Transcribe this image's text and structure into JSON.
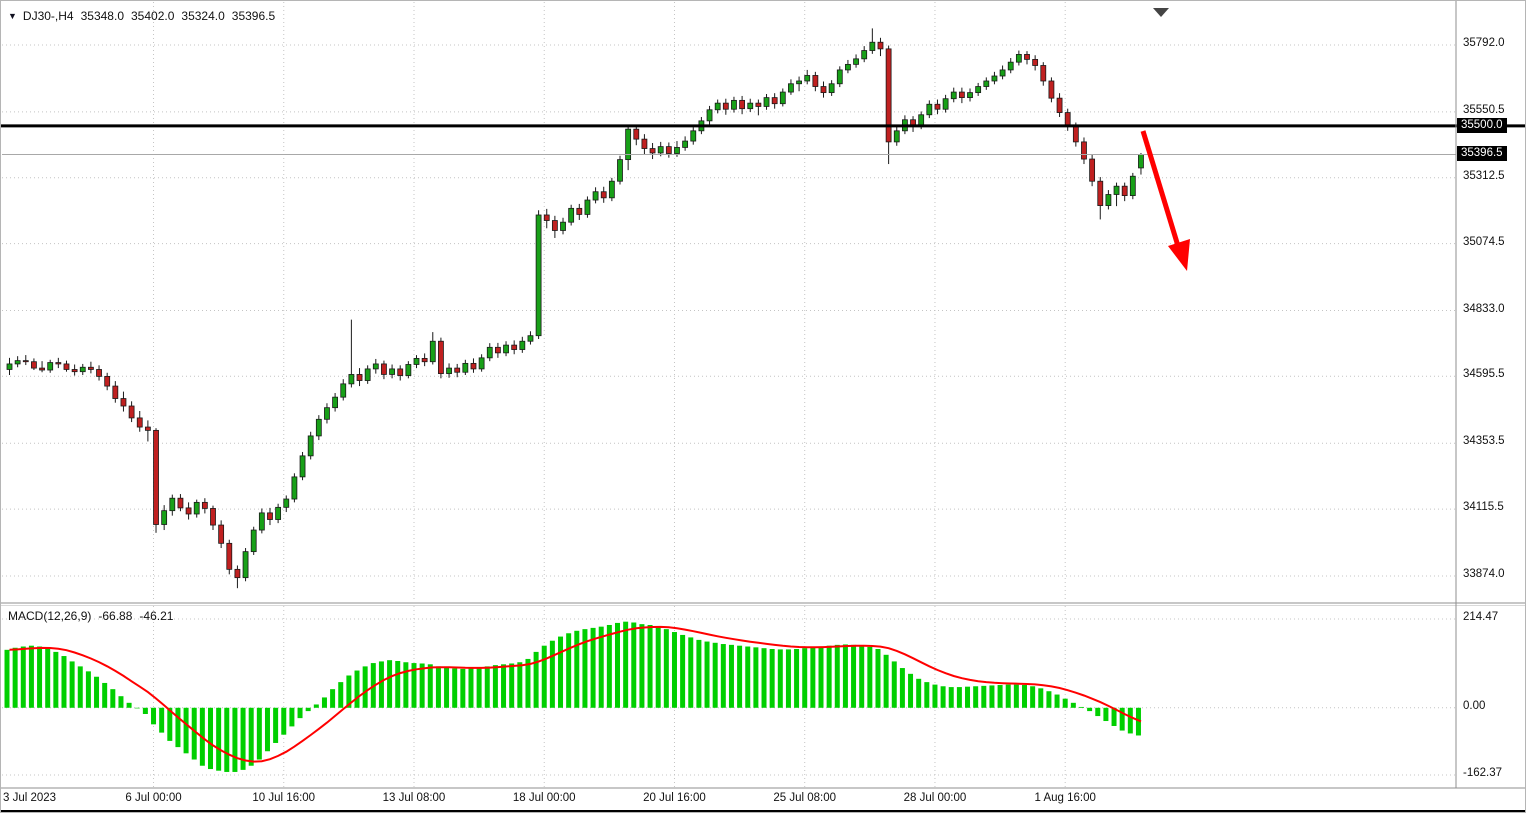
{
  "header": {
    "symbol": "DJ30-,H4",
    "open": "35348.0",
    "high": "35402.0",
    "low": "35324.0",
    "close": "35396.5"
  },
  "icons": {
    "symbol_marker": "▼",
    "scroll_marker": "▼"
  },
  "colors": {
    "bull": "#18a018",
    "bear": "#c02020",
    "wick": "#1a1a1a",
    "macd_bar": "#00cf00",
    "signal": "#ff0000",
    "arrow": "#ff0000",
    "hline": "#000000",
    "grid": "#c4c4c4",
    "bid_line": "#a8a8a8",
    "axis_text": "#111111",
    "label_box_bg": "#000000",
    "label_box_text": "#ffffff",
    "separator": "#8f8f8f"
  },
  "price_axis": {
    "ticks": [
      "35792.0",
      "35550.5",
      "35312.5",
      "35074.5",
      "34833.0",
      "34595.5",
      "34353.5",
      "34115.5",
      "33874.0"
    ],
    "line_label": "35500.0",
    "bid_label": "35396.5"
  },
  "time_axis": {
    "ticks": [
      {
        "label": "3 Jul 2023",
        "index": 0,
        "grid": false,
        "align": "left"
      },
      {
        "label": "6 Jul 00:00",
        "index": 18,
        "grid": true
      },
      {
        "label": "10 Jul 16:00",
        "index": 34,
        "grid": true
      },
      {
        "label": "13 Jul 08:00",
        "index": 50,
        "grid": true
      },
      {
        "label": "18 Jul 00:00",
        "index": 66,
        "grid": true
      },
      {
        "label": "20 Jul 16:00",
        "index": 82,
        "grid": true
      },
      {
        "label": "25 Jul 08:00",
        "index": 98,
        "grid": true
      },
      {
        "label": "28 Jul 00:00",
        "index": 114,
        "grid": true
      },
      {
        "label": "1 Aug 16:00",
        "index": 130,
        "grid": true
      }
    ]
  },
  "indicator": {
    "name": "MACD(12,26,9)",
    "macd_value": "-66.88",
    "signal_value": "-46.21",
    "axis_ticks": [
      "214.47",
      "0.00",
      "-162.37"
    ]
  },
  "chart_data": {
    "type": "candlestick",
    "symbol": "DJ30-",
    "timeframe": "H4",
    "title": "DJ30-,H4 35348.0 35402.0 35324.0 35396.5",
    "ylim": [
      33783,
      35922
    ],
    "grid": true,
    "price_ticks": [
      35792.0,
      35550.5,
      35312.5,
      35074.5,
      34833.0,
      34595.5,
      34353.5,
      34115.5,
      33874.0
    ],
    "horizontal_line": 35500.0,
    "bid_price": 35396.5,
    "last_ohlc": {
      "open": 35348.0,
      "high": 35402.0,
      "low": 35324.0,
      "close": 35396.5
    },
    "annotation": {
      "type": "trend-arrow-down",
      "color": "#ff0000"
    },
    "candles": [
      [
        34620,
        34662,
        34600,
        34640
      ],
      [
        34640,
        34668,
        34628,
        34652
      ],
      [
        34652,
        34672,
        34636,
        34648
      ],
      [
        34648,
        34660,
        34618,
        34625
      ],
      [
        34625,
        34650,
        34610,
        34618
      ],
      [
        34618,
        34655,
        34608,
        34645
      ],
      [
        34645,
        34662,
        34625,
        34640
      ],
      [
        34640,
        34652,
        34612,
        34620
      ],
      [
        34620,
        34638,
        34598,
        34612
      ],
      [
        34612,
        34640,
        34600,
        34628
      ],
      [
        34628,
        34648,
        34606,
        34620
      ],
      [
        34620,
        34635,
        34580,
        34595
      ],
      [
        34595,
        34608,
        34545,
        34560
      ],
      [
        34560,
        34578,
        34500,
        34515
      ],
      [
        34515,
        34540,
        34468,
        34488
      ],
      [
        34488,
        34505,
        34430,
        34445
      ],
      [
        34445,
        34470,
        34395,
        34412
      ],
      [
        34412,
        34436,
        34360,
        34400
      ],
      [
        34400,
        34408,
        34030,
        34060
      ],
      [
        34060,
        34130,
        34040,
        34110
      ],
      [
        34110,
        34168,
        34092,
        34155
      ],
      [
        34155,
        34170,
        34108,
        34120
      ],
      [
        34120,
        34140,
        34078,
        34098
      ],
      [
        34098,
        34150,
        34085,
        34140
      ],
      [
        34140,
        34155,
        34100,
        34118
      ],
      [
        34118,
        34128,
        34040,
        34058
      ],
      [
        34058,
        34075,
        33975,
        33992
      ],
      [
        33992,
        34005,
        33880,
        33898
      ],
      [
        33898,
        33912,
        33830,
        33868
      ],
      [
        33868,
        33975,
        33855,
        33962
      ],
      [
        33962,
        34052,
        33950,
        34040
      ],
      [
        34040,
        34118,
        34028,
        34102
      ],
      [
        34102,
        34120,
        34058,
        34078
      ],
      [
        34078,
        34135,
        34065,
        34122
      ],
      [
        34122,
        34165,
        34105,
        34152
      ],
      [
        34152,
        34245,
        34140,
        34232
      ],
      [
        34232,
        34322,
        34220,
        34308
      ],
      [
        34308,
        34395,
        34295,
        34380
      ],
      [
        34380,
        34455,
        34365,
        34440
      ],
      [
        34440,
        34498,
        34425,
        34482
      ],
      [
        34482,
        34535,
        34468,
        34520
      ],
      [
        34520,
        34585,
        34508,
        34568
      ],
      [
        34568,
        34800,
        34555,
        34602
      ],
      [
        34602,
        34625,
        34560,
        34580
      ],
      [
        34580,
        34635,
        34568,
        34622
      ],
      [
        34622,
        34658,
        34605,
        34640
      ],
      [
        34640,
        34652,
        34585,
        34602
      ],
      [
        34602,
        34638,
        34588,
        34622
      ],
      [
        34622,
        34635,
        34580,
        34598
      ],
      [
        34598,
        34650,
        34588,
        34638
      ],
      [
        34638,
        34672,
        34625,
        34660
      ],
      [
        34660,
        34678,
        34632,
        34648
      ],
      [
        34648,
        34755,
        34638,
        34722
      ],
      [
        34722,
        34735,
        34588,
        34605
      ],
      [
        34605,
        34642,
        34590,
        34625
      ],
      [
        34625,
        34640,
        34592,
        34610
      ],
      [
        34610,
        34655,
        34600,
        34642
      ],
      [
        34642,
        34660,
        34608,
        34622
      ],
      [
        34622,
        34675,
        34612,
        34662
      ],
      [
        34662,
        34715,
        34650,
        34700
      ],
      [
        34700,
        34716,
        34662,
        34680
      ],
      [
        34680,
        34722,
        34668,
        34708
      ],
      [
        34708,
        34725,
        34675,
        34692
      ],
      [
        34692,
        34738,
        34680,
        34722
      ],
      [
        34722,
        34758,
        34710,
        34742
      ],
      [
        34742,
        35195,
        34730,
        35178
      ],
      [
        35178,
        35200,
        35130,
        35158
      ],
      [
        35158,
        35175,
        35095,
        35122
      ],
      [
        35122,
        35168,
        35108,
        35152
      ],
      [
        35152,
        35215,
        35140,
        35202
      ],
      [
        35202,
        35218,
        35160,
        35180
      ],
      [
        35180,
        35245,
        35168,
        35232
      ],
      [
        35232,
        35278,
        35220,
        35262
      ],
      [
        35262,
        35280,
        35222,
        35240
      ],
      [
        35240,
        35312,
        35228,
        35300
      ],
      [
        35300,
        35392,
        35288,
        35378
      ],
      [
        35378,
        35498,
        35340,
        35488
      ],
      [
        35488,
        35502,
        35430,
        35452
      ],
      [
        35452,
        35470,
        35398,
        35418
      ],
      [
        35418,
        35438,
        35380,
        35402
      ],
      [
        35402,
        35442,
        35390,
        35425
      ],
      [
        35425,
        35440,
        35385,
        35400
      ],
      [
        35400,
        35445,
        35388,
        35422
      ],
      [
        35422,
        35462,
        35410,
        35445
      ],
      [
        35445,
        35495,
        35432,
        35482
      ],
      [
        35482,
        35532,
        35470,
        35518
      ],
      [
        35518,
        35572,
        35505,
        35558
      ],
      [
        35558,
        35595,
        35545,
        35582
      ],
      [
        35582,
        35598,
        35540,
        35560
      ],
      [
        35560,
        35605,
        35548,
        35592
      ],
      [
        35592,
        35608,
        35542,
        35562
      ],
      [
        35562,
        35598,
        35550,
        35582
      ],
      [
        35582,
        35595,
        35538,
        35570
      ],
      [
        35570,
        35615,
        35558,
        35602
      ],
      [
        35602,
        35618,
        35562,
        35580
      ],
      [
        35580,
        35635,
        35570,
        35622
      ],
      [
        35622,
        35668,
        35612,
        35652
      ],
      [
        35652,
        35678,
        35625,
        35662
      ],
      [
        35662,
        35702,
        35650,
        35682
      ],
      [
        35682,
        35695,
        35625,
        35642
      ],
      [
        35642,
        35660,
        35602,
        35620
      ],
      [
        35620,
        35665,
        35608,
        35652
      ],
      [
        35652,
        35715,
        35640,
        35702
      ],
      [
        35702,
        35738,
        35690,
        35722
      ],
      [
        35722,
        35758,
        35710,
        35742
      ],
      [
        35742,
        35788,
        35730,
        35772
      ],
      [
        35772,
        35852,
        35760,
        35802
      ],
      [
        35802,
        35818,
        35752,
        35778
      ],
      [
        35778,
        35790,
        35362,
        35442
      ],
      [
        35442,
        35502,
        35428,
        35482
      ],
      [
        35482,
        35538,
        35470,
        35522
      ],
      [
        35522,
        35535,
        35478,
        35498
      ],
      [
        35498,
        35552,
        35488,
        35540
      ],
      [
        35540,
        35592,
        35528,
        35578
      ],
      [
        35578,
        35595,
        35542,
        35560
      ],
      [
        35560,
        35612,
        35548,
        35598
      ],
      [
        35598,
        35638,
        35585,
        35622
      ],
      [
        35622,
        35638,
        35582,
        35602
      ],
      [
        35602,
        35635,
        35588,
        35620
      ],
      [
        35620,
        35655,
        35608,
        35642
      ],
      [
        35642,
        35675,
        35630,
        35662
      ],
      [
        35662,
        35695,
        35650,
        35680
      ],
      [
        35680,
        35718,
        35668,
        35702
      ],
      [
        35702,
        35745,
        35690,
        35730
      ],
      [
        35730,
        35772,
        35718,
        35758
      ],
      [
        35758,
        35770,
        35722,
        35740
      ],
      [
        35740,
        35755,
        35700,
        35718
      ],
      [
        35718,
        35730,
        35645,
        35662
      ],
      [
        35662,
        35675,
        35585,
        35600
      ],
      [
        35600,
        35618,
        35532,
        35548
      ],
      [
        35548,
        35562,
        35482,
        35498
      ],
      [
        35498,
        35512,
        35425,
        35442
      ],
      [
        35442,
        35458,
        35362,
        35380
      ],
      [
        35380,
        35395,
        35282,
        35300
      ],
      [
        35300,
        35315,
        35162,
        35212
      ],
      [
        35212,
        35268,
        35198,
        35252
      ],
      [
        35252,
        35295,
        35210,
        35282
      ],
      [
        35282,
        35295,
        35228,
        35248
      ],
      [
        35248,
        35330,
        35235,
        35318
      ],
      [
        35348,
        35402,
        35324,
        35396.5
      ]
    ],
    "macd": {
      "params": [
        12,
        26,
        9
      ],
      "macd_last": -66.88,
      "signal_last": -46.21,
      "axis": [
        214.47,
        0,
        -162.37
      ],
      "histogram": [
        140,
        145,
        148,
        150,
        148,
        143,
        135,
        125,
        112,
        100,
        88,
        75,
        60,
        45,
        28,
        12,
        0,
        -15,
        -40,
        -60,
        -80,
        -95,
        -110,
        -125,
        -140,
        -148,
        -152,
        -155,
        -155,
        -150,
        -140,
        -125,
        -105,
        -85,
        -65,
        -45,
        -25,
        -8,
        8,
        25,
        45,
        62,
        78,
        90,
        100,
        108,
        112,
        115,
        113,
        110,
        108,
        107,
        105,
        100,
        97,
        95,
        94,
        95,
        97,
        100,
        103,
        105,
        107,
        110,
        118,
        135,
        150,
        162,
        172,
        180,
        186,
        190,
        193,
        196,
        200,
        205,
        208,
        206,
        202,
        200,
        196,
        190,
        183,
        176,
        170,
        164,
        160,
        157,
        154,
        152,
        150,
        148,
        146,
        144,
        142,
        141,
        141,
        142,
        144,
        146,
        148,
        150,
        152,
        153,
        152,
        150,
        147,
        142,
        128,
        112,
        96,
        82,
        70,
        62,
        56,
        52,
        50,
        50,
        51,
        52,
        53,
        54,
        55,
        56,
        56,
        55,
        52,
        47,
        40,
        32,
        22,
        12,
        2,
        -8,
        -20,
        -32,
        -44,
        -55,
        -62,
        -66.88
      ]
    }
  }
}
